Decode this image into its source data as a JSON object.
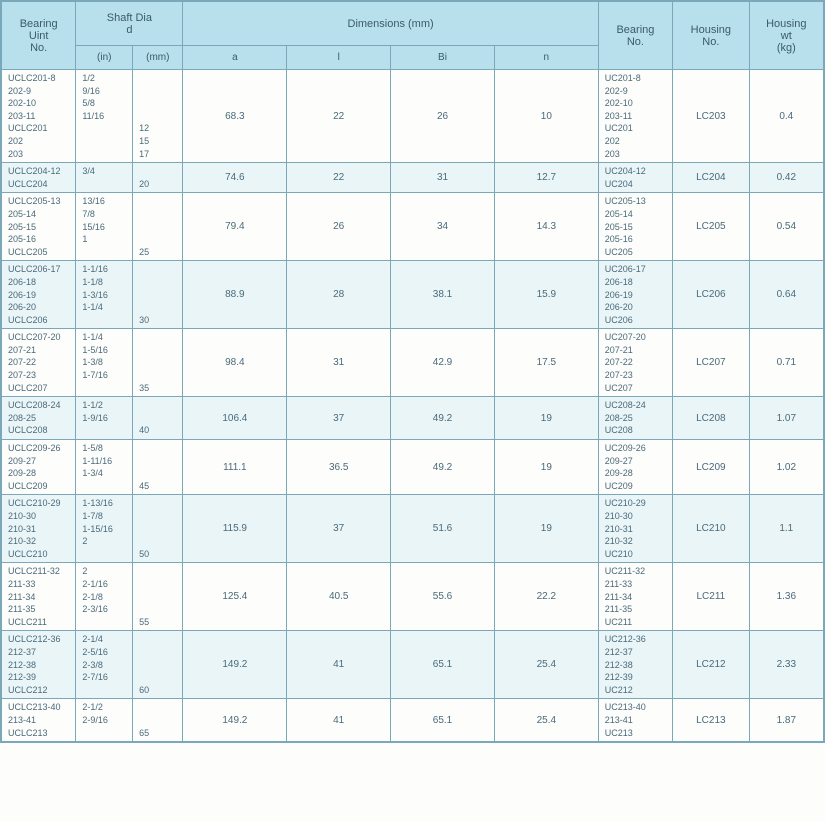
{
  "headers": {
    "bearing_unit": "Bearing\nUint\nNo.",
    "shaft_dia": "Shaft   Dia\nd",
    "dimensions": "Dimensions      (mm)",
    "bearing_no": "Bearing\nNo.",
    "housing_no": "Housing\nNo.",
    "housing_wt": "Housing\nwt\n(kg)",
    "sub_in": "(in)",
    "sub_mm": "(mm)",
    "sub_a": "a",
    "sub_l": "l",
    "sub_bi": "Bi",
    "sub_n": "n"
  },
  "groups": [
    {
      "zebra": false,
      "unit": [
        "UCLC201-8",
        "202-9",
        "202-10",
        "203-11",
        "UCLC201",
        "202",
        "203"
      ],
      "in": [
        "1/2",
        "9/16",
        "5/8",
        "11/16",
        "",
        "",
        ""
      ],
      "mm": [
        "",
        "",
        "",
        "",
        "12",
        "15",
        "17"
      ],
      "a": "68.3",
      "l": "22",
      "bi": "26",
      "n": "10",
      "bno": [
        "UC201-8",
        "202-9",
        "202-10",
        "203-11",
        "UC201",
        "202",
        "203"
      ],
      "hno": "LC203",
      "wt": "0.4"
    },
    {
      "zebra": true,
      "unit": [
        "UCLC204-12",
        "UCLC204"
      ],
      "in": [
        "3/4",
        ""
      ],
      "mm": [
        "",
        "20"
      ],
      "a": "74.6",
      "l": "22",
      "bi": "31",
      "n": "12.7",
      "bno": [
        "UC204-12",
        "UC204"
      ],
      "hno": "LC204",
      "wt": "0.42"
    },
    {
      "zebra": false,
      "unit": [
        "UCLC205-13",
        "205-14",
        "205-15",
        "205-16",
        "UCLC205"
      ],
      "in": [
        "13/16",
        "7/8",
        "15/16",
        "1",
        ""
      ],
      "mm": [
        "",
        "",
        "",
        "",
        "25"
      ],
      "a": "79.4",
      "l": "26",
      "bi": "34",
      "n": "14.3",
      "bno": [
        "UC205-13",
        "205-14",
        "205-15",
        "205-16",
        "UC205"
      ],
      "hno": "LC205",
      "wt": "0.54"
    },
    {
      "zebra": true,
      "unit": [
        "UCLC206-17",
        "206-18",
        "206-19",
        "206-20",
        "UCLC206"
      ],
      "in": [
        "1-1/16",
        "1-1/8",
        "1-3/16",
        "1-1/4",
        ""
      ],
      "mm": [
        "",
        "",
        "",
        "",
        "30"
      ],
      "a": "88.9",
      "l": "28",
      "bi": "38.1",
      "n": "15.9",
      "bno": [
        "UC206-17",
        "206-18",
        "206-19",
        "206-20",
        "UC206"
      ],
      "hno": "LC206",
      "wt": "0.64"
    },
    {
      "zebra": false,
      "unit": [
        "UCLC207-20",
        "207-21",
        "207-22",
        "207-23",
        "UCLC207"
      ],
      "in": [
        "1-1/4",
        "1-5/16",
        "1-3/8",
        "1-7/16",
        ""
      ],
      "mm": [
        "",
        "",
        "",
        "",
        "35"
      ],
      "a": "98.4",
      "l": "31",
      "bi": "42.9",
      "n": "17.5",
      "bno": [
        "UC207-20",
        "207-21",
        "207-22",
        "207-23",
        "UC207"
      ],
      "hno": "LC207",
      "wt": "0.71"
    },
    {
      "zebra": true,
      "unit": [
        "UCLC208-24",
        "208-25",
        "UCLC208"
      ],
      "in": [
        "1-1/2",
        "1-9/16",
        ""
      ],
      "mm": [
        "",
        "",
        "40"
      ],
      "a": "106.4",
      "l": "37",
      "bi": "49.2",
      "n": "19",
      "bno": [
        "UC208-24",
        "208-25",
        "UC208"
      ],
      "hno": "LC208",
      "wt": "1.07"
    },
    {
      "zebra": false,
      "unit": [
        "UCLC209-26",
        "209-27",
        "209-28",
        "UCLC209"
      ],
      "in": [
        "1-5/8",
        "1-11/16",
        "1-3/4",
        ""
      ],
      "mm": [
        "",
        "",
        "",
        "45"
      ],
      "a": "111.1",
      "l": "36.5",
      "bi": "49.2",
      "n": "19",
      "bno": [
        "UC209-26",
        "209-27",
        "209-28",
        "UC209"
      ],
      "hno": "LC209",
      "wt": "1.02"
    },
    {
      "zebra": true,
      "unit": [
        "UCLC210-29",
        "210-30",
        "210-31",
        "210-32",
        "UCLC210"
      ],
      "in": [
        "1-13/16",
        "1-7/8",
        "1-15/16",
        "2",
        ""
      ],
      "mm": [
        "",
        "",
        "",
        "",
        "50"
      ],
      "a": "115.9",
      "l": "37",
      "bi": "51.6",
      "n": "19",
      "bno": [
        "UC210-29",
        "210-30",
        "210-31",
        "210-32",
        "UC210"
      ],
      "hno": "LC210",
      "wt": "1.1"
    },
    {
      "zebra": false,
      "unit": [
        "UCLC211-32",
        "211-33",
        "211-34",
        "211-35",
        "UCLC211"
      ],
      "in": [
        "2",
        "2-1/16",
        "2-1/8",
        "2-3/16",
        ""
      ],
      "mm": [
        "",
        "",
        "",
        "",
        "55"
      ],
      "a": "125.4",
      "l": "40.5",
      "bi": "55.6",
      "n": "22.2",
      "bno": [
        "UC211-32",
        "211-33",
        "211-34",
        "211-35",
        "UC211"
      ],
      "hno": "LC211",
      "wt": "1.36"
    },
    {
      "zebra": true,
      "unit": [
        "UCLC212-36",
        "212-37",
        "212-38",
        "212-39",
        "UCLC212"
      ],
      "in": [
        "2-1/4",
        "2-5/16",
        "2-3/8",
        "2-7/16",
        ""
      ],
      "mm": [
        "",
        "",
        "",
        "",
        "60"
      ],
      "a": "149.2",
      "l": "41",
      "bi": "65.1",
      "n": "25.4",
      "bno": [
        "UC212-36",
        "212-37",
        "212-38",
        "212-39",
        "UC212"
      ],
      "hno": "LC212",
      "wt": "2.33"
    },
    {
      "zebra": false,
      "unit": [
        "UCLC213-40",
        "213-41",
        "UCLC213"
      ],
      "in": [
        "2-1/2",
        "2-9/16",
        ""
      ],
      "mm": [
        "",
        "",
        "65"
      ],
      "a": "149.2",
      "l": "41",
      "bi": "65.1",
      "n": "25.4",
      "bno": [
        "UC213-40",
        "213-41",
        "UC213"
      ],
      "hno": "LC213",
      "wt": "1.87"
    }
  ]
}
